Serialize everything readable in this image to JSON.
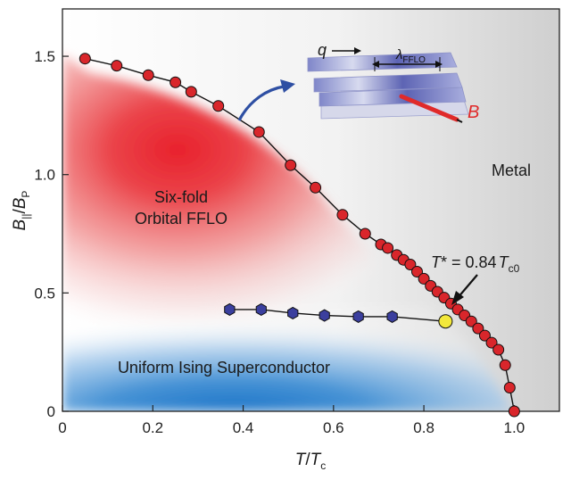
{
  "chart_data": {
    "type": "scatter",
    "xlabel": {
      "main": "T",
      "sep": "/",
      "den": "T",
      "den_sub": "c"
    },
    "ylabel": {
      "main": "B",
      "main_sub": "||",
      "sep": "/",
      "den": "B",
      "den_sub": "P"
    },
    "xlim": [
      0,
      1.1
    ],
    "ylim": [
      0,
      1.7
    ],
    "x_ticks": [
      0,
      0.2,
      0.4,
      0.6,
      0.8,
      1.0
    ],
    "x_tick_labels": [
      "0",
      "0.2",
      "0.4",
      "0.6",
      "0.8",
      "1.0"
    ],
    "y_ticks": [
      0,
      0.5,
      1.0,
      1.5
    ],
    "y_tick_labels": [
      "0",
      "0.5",
      "1.0",
      "1.5"
    ],
    "series": [
      {
        "name": "Upper critical field (orbital FFLO boundary)",
        "marker": "circle",
        "color": "#d9262b",
        "points": [
          [
            0.05,
            1.49
          ],
          [
            0.12,
            1.46
          ],
          [
            0.19,
            1.42
          ],
          [
            0.25,
            1.39
          ],
          [
            0.285,
            1.35
          ],
          [
            0.345,
            1.29
          ],
          [
            0.435,
            1.18
          ],
          [
            0.505,
            1.04
          ],
          [
            0.56,
            0.945
          ],
          [
            0.62,
            0.83
          ],
          [
            0.67,
            0.75
          ],
          [
            0.705,
            0.705
          ],
          [
            0.72,
            0.69
          ],
          [
            0.74,
            0.66
          ],
          [
            0.755,
            0.64
          ],
          [
            0.77,
            0.62
          ],
          [
            0.785,
            0.59
          ],
          [
            0.8,
            0.56
          ],
          [
            0.815,
            0.53
          ],
          [
            0.83,
            0.505
          ],
          [
            0.845,
            0.48
          ],
          [
            0.86,
            0.455
          ],
          [
            0.875,
            0.43
          ],
          [
            0.89,
            0.405
          ],
          [
            0.905,
            0.38
          ],
          [
            0.92,
            0.35
          ],
          [
            0.935,
            0.32
          ],
          [
            0.95,
            0.29
          ],
          [
            0.965,
            0.26
          ],
          [
            0.98,
            0.195
          ],
          [
            0.99,
            0.1
          ],
          [
            1.0,
            0.0
          ]
        ]
      },
      {
        "name": "Uniform–FFLO transition",
        "marker": "hexagon",
        "color": "#3b3f9e",
        "points": [
          [
            0.37,
            0.43
          ],
          [
            0.44,
            0.43
          ],
          [
            0.51,
            0.415
          ],
          [
            0.58,
            0.405
          ],
          [
            0.655,
            0.4
          ],
          [
            0.73,
            0.4
          ]
        ]
      },
      {
        "name": "Tricritical point",
        "marker": "circle",
        "color": "#f3e83a",
        "points": [
          [
            0.848,
            0.38
          ]
        ]
      }
    ],
    "annotations": {
      "fflo": [
        "Six-fold",
        "Orbital FFLO"
      ],
      "metal": "Metal",
      "ising": "Uniform Ising Superconductor",
      "tstar": {
        "lead": "T",
        "mid": "* = 0.84",
        "tail": "T",
        "sub": "c0"
      },
      "inset": {
        "q": "q",
        "lambda": "λ",
        "lambda_sub": "FFLO",
        "B": "B"
      }
    }
  }
}
